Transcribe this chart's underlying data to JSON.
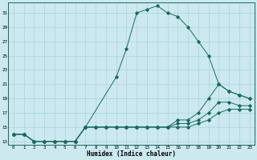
{
  "xlabel": "Humidex (Indice chaleur)",
  "background_color": "#cce9ef",
  "line_color": "#1a6b5c",
  "grid_color": "#aad4dc",
  "xlim": [
    -0.5,
    23.5
  ],
  "ylim": [
    12.5,
    32.5
  ],
  "yticks": [
    13,
    15,
    17,
    19,
    21,
    23,
    25,
    27,
    29,
    31
  ],
  "xticks": [
    0,
    1,
    2,
    3,
    4,
    5,
    6,
    7,
    8,
    9,
    10,
    11,
    12,
    13,
    14,
    15,
    16,
    17,
    18,
    19,
    20,
    21,
    22,
    23
  ],
  "line1_x": [
    0,
    1,
    2,
    3,
    4,
    5,
    6,
    7,
    10,
    11,
    12,
    13,
    14,
    15,
    16,
    17,
    18,
    19,
    20,
    21,
    22,
    23
  ],
  "line1_y": [
    14,
    14,
    13,
    13,
    13,
    13,
    13,
    15,
    22,
    26,
    31,
    31.5,
    32,
    31,
    30.5,
    29,
    27,
    25,
    21,
    20,
    19.5,
    19
  ],
  "line2_x": [
    0,
    1,
    2,
    3,
    4,
    5,
    6,
    7,
    8,
    9,
    10,
    11,
    12,
    13,
    14,
    15,
    16,
    17,
    18,
    19,
    20,
    21,
    22,
    23
  ],
  "line2_y": [
    14,
    14,
    13,
    13,
    13,
    13,
    13,
    15,
    15,
    15,
    15,
    15,
    15,
    15,
    15,
    15,
    16,
    16,
    17,
    19,
    21,
    20,
    19.5,
    19
  ],
  "line3_x": [
    0,
    1,
    2,
    3,
    4,
    5,
    6,
    7,
    8,
    9,
    10,
    11,
    12,
    13,
    14,
    15,
    16,
    17,
    18,
    19,
    20,
    21,
    22,
    23
  ],
  "line3_y": [
    14,
    14,
    13,
    13,
    13,
    13,
    13,
    15,
    15,
    15,
    15,
    15,
    15,
    15,
    15,
    15,
    15.5,
    15.5,
    16,
    17,
    18.5,
    18.5,
    18,
    18
  ],
  "line4_x": [
    0,
    1,
    2,
    3,
    4,
    5,
    6,
    7,
    8,
    9,
    10,
    11,
    12,
    13,
    14,
    15,
    16,
    17,
    18,
    19,
    20,
    21,
    22,
    23
  ],
  "line4_y": [
    14,
    14,
    13,
    13,
    13,
    13,
    13,
    15,
    15,
    15,
    15,
    15,
    15,
    15,
    15,
    15,
    15,
    15,
    15.5,
    16,
    17,
    17.5,
    17.5,
    17.5
  ]
}
